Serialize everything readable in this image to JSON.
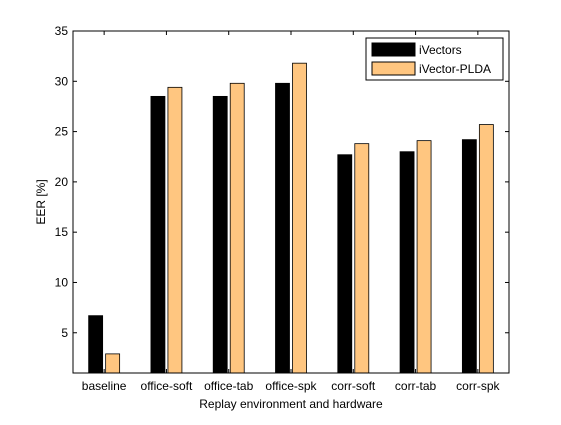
{
  "chart_data": {
    "type": "bar",
    "title": "",
    "xlabel": "Replay environment and hardware",
    "ylabel": "EER [%]",
    "categories": [
      "baseline",
      "office-soft",
      "office-tab",
      "office-spk",
      "corr-soft",
      "corr-tab",
      "corr-spk"
    ],
    "ylim": [
      1,
      35
    ],
    "yticks": [
      5,
      10,
      15,
      20,
      25,
      30,
      35
    ],
    "grid": false,
    "legend_position": "top-right",
    "series": [
      {
        "name": "iVectors",
        "color": "#000000",
        "values": [
          6.7,
          28.5,
          28.5,
          29.8,
          22.7,
          23.0,
          24.2
        ]
      },
      {
        "name": "iVector-PLDA",
        "color": "#FFC680",
        "values": [
          2.9,
          29.4,
          29.8,
          31.8,
          23.8,
          24.1,
          25.7
        ]
      }
    ]
  }
}
